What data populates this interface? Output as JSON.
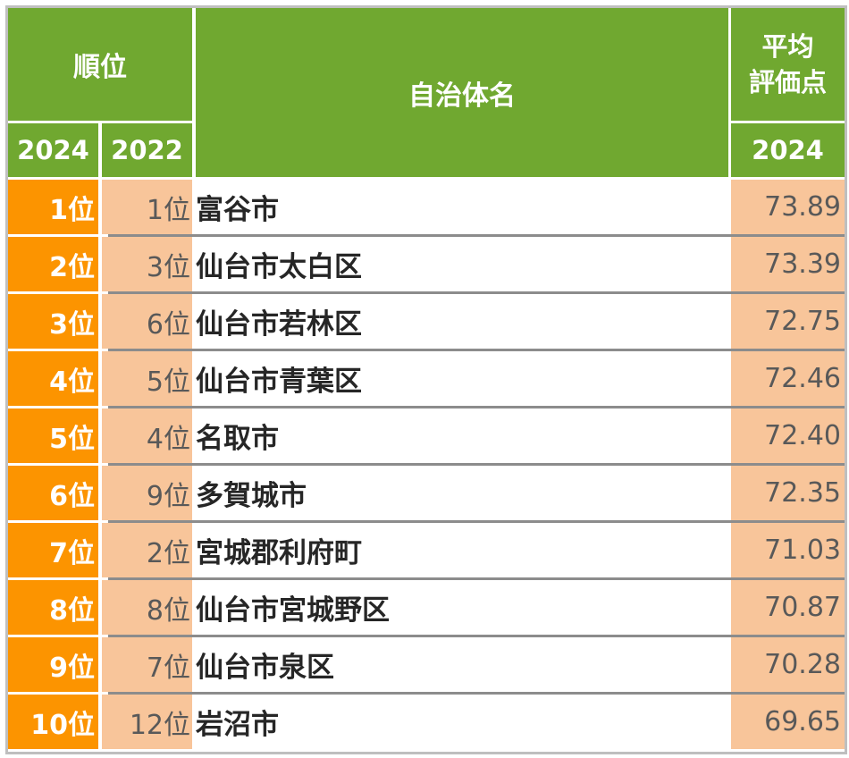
{
  "header": {
    "rank_group": "順位",
    "year_current": "2024",
    "year_previous": "2022",
    "municipality": "自治体名",
    "avg_score_line1": "平均",
    "avg_score_line2": "評価点",
    "score_year": "2024"
  },
  "rows": [
    {
      "rank": "1位",
      "prev": "1位",
      "name": "富谷市",
      "score": "73.89"
    },
    {
      "rank": "2位",
      "prev": "3位",
      "name": "仙台市太白区",
      "score": "73.39"
    },
    {
      "rank": "3位",
      "prev": "6位",
      "name": "仙台市若林区",
      "score": "72.75"
    },
    {
      "rank": "4位",
      "prev": "5位",
      "name": "仙台市青葉区",
      "score": "72.46"
    },
    {
      "rank": "5位",
      "prev": "4位",
      "name": "名取市",
      "score": "72.40"
    },
    {
      "rank": "6位",
      "prev": "9位",
      "name": "多賀城市",
      "score": "72.35"
    },
    {
      "rank": "7位",
      "prev": "2位",
      "name": "宮城郡利府町",
      "score": "71.03"
    },
    {
      "rank": "8位",
      "prev": "8位",
      "name": "仙台市宮城野区",
      "score": "70.87"
    },
    {
      "rank": "9位",
      "prev": "7位",
      "name": "仙台市泉区",
      "score": "70.28"
    },
    {
      "rank": "10位",
      "prev": "12位",
      "name": "岩沼市",
      "score": "69.65"
    }
  ],
  "colors": {
    "header_green": "#70a830",
    "rank_orange": "#fc9400",
    "peach": "#f8c59a",
    "divider_gray": "#8c8c8c"
  }
}
